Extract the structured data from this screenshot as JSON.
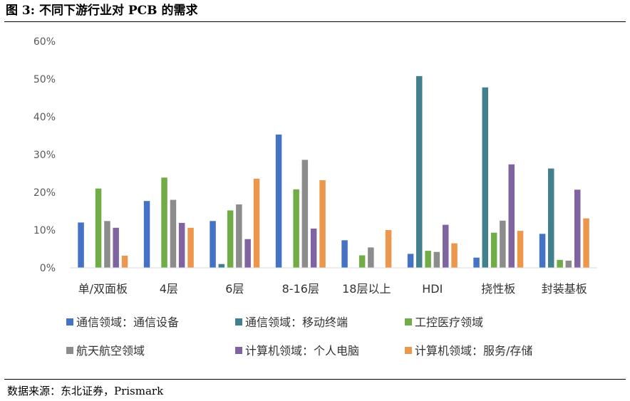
{
  "figure": {
    "title": "图 3: 不同下游行业对 PCB 的需求",
    "source": "数据来源：东北证券，Prismark"
  },
  "chart_data": {
    "type": "bar",
    "categories": [
      "单/双面板",
      "4层",
      "6层",
      "8-16层",
      "18层以上",
      "HDI",
      "挠性板",
      "封装基板"
    ],
    "ylim": [
      0,
      60
    ],
    "y_ticks": [
      "0%",
      "10%",
      "20%",
      "30%",
      "40%",
      "50%",
      "60%"
    ],
    "grid": false,
    "legend_position": "bottom",
    "series": [
      {
        "name": "通信领域：通信设备",
        "color": "#4472C4",
        "values": [
          12.0,
          17.7,
          12.4,
          35.3,
          7.3,
          3.7,
          2.7,
          9.0
        ]
      },
      {
        "name": "通信领域：移动终端",
        "color": "#43808F",
        "values": [
          0,
          0,
          1.0,
          0,
          0,
          50.8,
          47.8,
          26.3
        ]
      },
      {
        "name": "工控医疗领域",
        "color": "#70AD47",
        "values": [
          21.0,
          23.9,
          15.2,
          20.8,
          3.3,
          4.5,
          9.3,
          2.1
        ]
      },
      {
        "name": "航天航空领域",
        "color": "#8C8C8C",
        "values": [
          12.4,
          18.0,
          16.8,
          28.6,
          5.4,
          4.2,
          12.5,
          1.9
        ]
      },
      {
        "name": "计算机领域：个人电脑",
        "color": "#8064A2",
        "values": [
          10.6,
          11.9,
          7.6,
          10.4,
          0,
          11.4,
          27.4,
          20.7
        ]
      },
      {
        "name": "计算机领域：服务/存储",
        "color": "#ED974D",
        "values": [
          3.2,
          10.6,
          23.6,
          23.2,
          10.0,
          6.5,
          9.8,
          13.1
        ]
      }
    ]
  }
}
